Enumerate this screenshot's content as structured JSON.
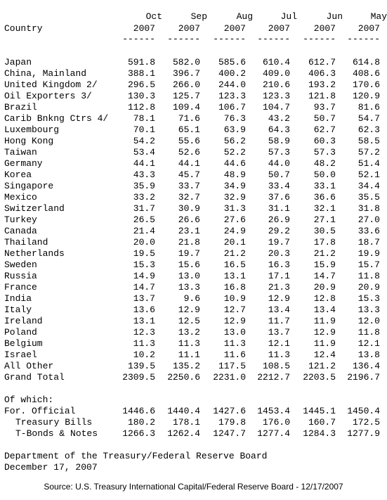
{
  "table": {
    "header": {
      "country": "Country",
      "columns": [
        {
          "month": "Oct",
          "year": "2007",
          "rule": "------"
        },
        {
          "month": "Sep",
          "year": "2007",
          "rule": "------"
        },
        {
          "month": "Aug",
          "year": "2007",
          "rule": "------"
        },
        {
          "month": "Jul",
          "year": "2007",
          "rule": "------"
        },
        {
          "month": "Jun",
          "year": "2007",
          "rule": "------"
        },
        {
          "month": "May",
          "year": "2007",
          "rule": "------"
        }
      ]
    },
    "rows": [
      {
        "country": "Japan",
        "values": [
          "591.8",
          "582.0",
          "585.6",
          "610.4",
          "612.7",
          "614.8"
        ]
      },
      {
        "country": "China, Mainland",
        "values": [
          "388.1",
          "396.7",
          "400.2",
          "409.0",
          "406.3",
          "408.6"
        ]
      },
      {
        "country": "United Kingdom 2/",
        "values": [
          "296.5",
          "266.0",
          "244.0",
          "210.6",
          "193.2",
          "170.6"
        ]
      },
      {
        "country": "Oil Exporters 3/",
        "values": [
          "130.3",
          "125.7",
          "123.3",
          "123.3",
          "121.8",
          "120.9"
        ]
      },
      {
        "country": "Brazil",
        "values": [
          "112.8",
          "109.4",
          "106.7",
          "104.7",
          "93.7",
          "81.6"
        ]
      },
      {
        "country": "Carib Bnkng Ctrs 4/",
        "values": [
          "78.1",
          "71.6",
          "76.3",
          "43.2",
          "50.7",
          "54.7"
        ]
      },
      {
        "country": "Luxembourg",
        "values": [
          "70.1",
          "65.1",
          "63.9",
          "64.3",
          "62.7",
          "62.3"
        ]
      },
      {
        "country": "Hong Kong",
        "values": [
          "54.2",
          "55.6",
          "56.2",
          "58.9",
          "60.3",
          "58.5"
        ]
      },
      {
        "country": "Taiwan",
        "values": [
          "53.4",
          "52.6",
          "52.2",
          "57.3",
          "57.3",
          "57.2"
        ]
      },
      {
        "country": "Germany",
        "values": [
          "44.1",
          "44.1",
          "44.6",
          "44.0",
          "48.2",
          "51.4"
        ]
      },
      {
        "country": "Korea",
        "values": [
          "43.3",
          "45.7",
          "48.9",
          "50.7",
          "50.0",
          "52.1"
        ]
      },
      {
        "country": "Singapore",
        "values": [
          "35.9",
          "33.7",
          "34.9",
          "33.4",
          "33.1",
          "34.4"
        ]
      },
      {
        "country": "Mexico",
        "values": [
          "33.2",
          "32.7",
          "32.9",
          "37.6",
          "36.6",
          "35.5"
        ]
      },
      {
        "country": "Switzerland",
        "values": [
          "31.7",
          "30.9",
          "31.3",
          "31.1",
          "32.1",
          "31.8"
        ]
      },
      {
        "country": "Turkey",
        "values": [
          "26.5",
          "26.6",
          "27.6",
          "26.9",
          "27.1",
          "27.0"
        ]
      },
      {
        "country": "Canada",
        "values": [
          "21.4",
          "23.1",
          "24.9",
          "29.2",
          "30.5",
          "33.6"
        ]
      },
      {
        "country": "Thailand",
        "values": [
          "20.0",
          "21.8",
          "20.1",
          "19.7",
          "17.8",
          "18.7"
        ]
      },
      {
        "country": "Netherlands",
        "values": [
          "19.5",
          "19.7",
          "21.2",
          "20.3",
          "21.2",
          "19.9"
        ]
      },
      {
        "country": "Sweden",
        "values": [
          "15.3",
          "15.6",
          "16.5",
          "16.3",
          "15.9",
          "15.7"
        ]
      },
      {
        "country": "Russia",
        "values": [
          "14.9",
          "13.0",
          "13.1",
          "17.1",
          "14.7",
          "11.8"
        ]
      },
      {
        "country": "France",
        "values": [
          "14.7",
          "13.3",
          "16.8",
          "21.3",
          "20.9",
          "20.9"
        ]
      },
      {
        "country": "India",
        "values": [
          "13.7",
          "9.6",
          "10.9",
          "12.9",
          "12.8",
          "15.3"
        ]
      },
      {
        "country": "Italy",
        "values": [
          "13.6",
          "12.9",
          "12.7",
          "13.4",
          "13.4",
          "13.3"
        ]
      },
      {
        "country": "Ireland",
        "values": [
          "13.1",
          "12.5",
          "12.9",
          "11.7",
          "11.9",
          "12.0"
        ]
      },
      {
        "country": "Poland",
        "values": [
          "12.3",
          "13.2",
          "13.0",
          "13.7",
          "12.9",
          "11.8"
        ]
      },
      {
        "country": "Belgium",
        "values": [
          "11.3",
          "11.3",
          "11.3",
          "12.1",
          "11.9",
          "12.1"
        ]
      },
      {
        "country": "Israel",
        "values": [
          "10.2",
          "11.1",
          "11.6",
          "11.3",
          "12.4",
          "13.8"
        ]
      },
      {
        "country": "All Other",
        "values": [
          "139.5",
          "135.2",
          "117.5",
          "108.5",
          "121.2",
          "136.4"
        ]
      },
      {
        "country": "Grand Total",
        "values": [
          "2309.5",
          "2250.6",
          "2231.0",
          "2212.7",
          "2203.5",
          "2196.7"
        ]
      }
    ],
    "of_which": {
      "label": "Of which:",
      "rows": [
        {
          "country": "For. Official",
          "values": [
            "1446.6",
            "1440.4",
            "1427.6",
            "1453.4",
            "1445.1",
            "1450.4"
          ]
        },
        {
          "country": "Treasury Bills",
          "values": [
            "180.2",
            "178.1",
            "179.8",
            "176.0",
            "160.7",
            "172.5"
          ]
        },
        {
          "country": "T-Bonds & Notes",
          "values": [
            "1266.3",
            "1262.4",
            "1247.7",
            "1277.4",
            "1284.3",
            "1277.9"
          ]
        }
      ]
    }
  },
  "footer": {
    "lines": [
      "Department of the Treasury/Federal Reserve Board",
      "December 17, 2007"
    ]
  },
  "source": "Source: U.S. Treasury International Capital/Federal Reserve Board - 12/17/2007"
}
